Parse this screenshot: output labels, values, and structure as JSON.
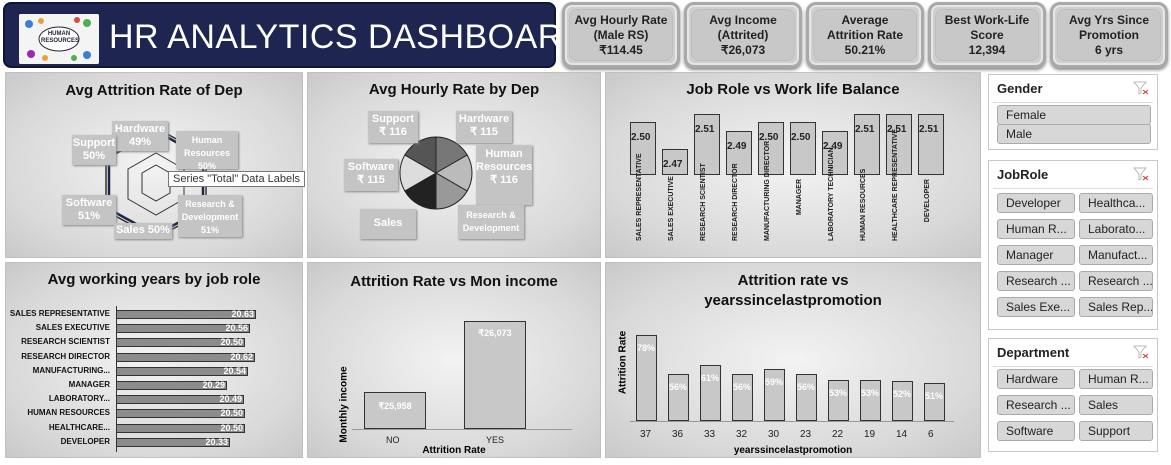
{
  "header": {
    "title": "HR ANALYTICS DASHBOARD",
    "logo_text": "HUMAN RESOURCES"
  },
  "kpis": [
    {
      "label": "Avg Hourly Rate (Male RS)",
      "value": "₹114.45"
    },
    {
      "label": "Avg Income (Attrited)",
      "value": "₹26,073"
    },
    {
      "label": "Average Attrition Rate",
      "value": "50.21%"
    },
    {
      "label": "Best Work-Life Score",
      "value": "12,394"
    },
    {
      "label": "Avg Yrs Since Promotion",
      "value": "6 yrs"
    }
  ],
  "attrition_dep": {
    "title": "Avg Attrition Rate of Dep",
    "labels": [
      {
        "name": "Hardware",
        "value": "49%"
      },
      {
        "name": "Human Resources",
        "value": "50%"
      },
      {
        "name": "Support",
        "value": "50%"
      },
      {
        "name": "Software",
        "value": "51%"
      },
      {
        "name": "Sales",
        "value": "50%"
      },
      {
        "name": "Research & Development",
        "value": "51%"
      }
    ],
    "tooltip": "Series \"Total\" Data Labels"
  },
  "hourly_dep": {
    "title": "Avg Hourly Rate by Dep",
    "labels": [
      {
        "name": "Support",
        "value": "₹ 116"
      },
      {
        "name": "Hardware",
        "value": "₹ 115"
      },
      {
        "name": "Human Resources",
        "value": "₹ 116"
      },
      {
        "name": "Software",
        "value": "₹ 115"
      },
      {
        "name": "Sales",
        "value": ""
      },
      {
        "name": "Research & Development",
        "value": ""
      }
    ]
  },
  "worklife": {
    "title": "Job Role vs Work life Balance",
    "categories": [
      "SALES REPRESENTATIVE",
      "SALES EXECUTIVE",
      "RESEARCH SCIENTIST",
      "RESEARCH DIRECTOR",
      "MANUFACTURING DIRECTOR",
      "MANAGER",
      "LABORATORY TECHNICIAN",
      "HUMAN RESOURCES",
      "HEALTHCARE REPRESENTATIVE",
      "DEVELOPER"
    ],
    "values": [
      "2.50",
      "2.47",
      "2.51",
      "2.49",
      "2.50",
      "2.50",
      "2.49",
      "2.51",
      "2.51",
      "2.51"
    ]
  },
  "working_years": {
    "title": "Avg working years by job role",
    "categories": [
      "SALES REPRESENTATIVE",
      "SALES EXECUTIVE",
      "RESEARCH SCIENTIST",
      "RESEARCH DIRECTOR",
      "MANUFACTURING...",
      "MANAGER",
      "LABORATORY...",
      "HUMAN RESOURCES",
      "HEALTHCARE...",
      "DEVELOPER"
    ],
    "values": [
      "20.63",
      "20.56",
      "20.50",
      "20.62",
      "20.54",
      "20.29",
      "20.49",
      "20.50",
      "20.50",
      "20.33"
    ]
  },
  "income": {
    "title": "Attrition Rate vs Mon income",
    "ylabel": "Monthly income",
    "xlabel": "Attrition Rate",
    "categories": [
      "NO",
      "YES"
    ],
    "values": [
      "₹25,958",
      "₹26,073"
    ]
  },
  "promotion": {
    "title_line1": "Attrition rate vs",
    "title_line2": "yearssincelastpromotion",
    "ylabel": "Attrition Rate",
    "xlabel": "yearssincelastpromotion",
    "categories": [
      "37",
      "36",
      "33",
      "32",
      "30",
      "23",
      "22",
      "19",
      "14",
      "6"
    ],
    "values": [
      "78%",
      "56%",
      "61%",
      "56%",
      "59%",
      "56%",
      "53%",
      "53%",
      "52%",
      "51%"
    ]
  },
  "chart_data": [
    {
      "type": "bar",
      "title": "Job Role vs Work life Balance",
      "categories": [
        "SALES REPRESENTATIVE",
        "SALES EXECUTIVE",
        "RESEARCH SCIENTIST",
        "RESEARCH DIRECTOR",
        "MANUFACTURING DIRECTOR",
        "MANAGER",
        "LABORATORY TECHNICIAN",
        "HUMAN RESOURCES",
        "HEALTHCARE REPRESENTATIVE",
        "DEVELOPER"
      ],
      "values": [
        2.5,
        2.47,
        2.51,
        2.49,
        2.5,
        2.5,
        2.49,
        2.51,
        2.51,
        2.51
      ]
    },
    {
      "type": "bar",
      "title": "Avg working years by job role",
      "orientation": "horizontal",
      "categories": [
        "SALES REPRESENTATIVE",
        "SALES EXECUTIVE",
        "RESEARCH SCIENTIST",
        "RESEARCH DIRECTOR",
        "MANUFACTURING...",
        "MANAGER",
        "LABORATORY...",
        "HUMAN RESOURCES",
        "HEALTHCARE...",
        "DEVELOPER"
      ],
      "values": [
        20.63,
        20.56,
        20.5,
        20.62,
        20.54,
        20.29,
        20.49,
        20.5,
        20.5,
        20.33
      ]
    },
    {
      "type": "bar",
      "title": "Attrition Rate vs Mon income",
      "categories": [
        "NO",
        "YES"
      ],
      "values": [
        25958,
        26073
      ],
      "xlabel": "Attrition Rate",
      "ylabel": "Monthly income"
    },
    {
      "type": "bar",
      "title": "Attrition rate vs yearssincelastpromotion",
      "categories": [
        "37",
        "36",
        "33",
        "32",
        "30",
        "23",
        "22",
        "19",
        "14",
        "6"
      ],
      "values": [
        78,
        56,
        61,
        56,
        59,
        56,
        53,
        53,
        52,
        51
      ],
      "xlabel": "yearssincelastpromotion",
      "ylabel": "Attrition Rate"
    }
  ],
  "slicers": {
    "gender": {
      "title": "Gender",
      "items": [
        "Female",
        "Male"
      ]
    },
    "jobrole": {
      "title": "JobRole",
      "items": [
        "Developer",
        "Healthca...",
        "Human R...",
        "Laborato...",
        "Manager",
        "Manufact...",
        "Research ...",
        "Research ...",
        "Sales Exe...",
        "Sales Rep..."
      ]
    },
    "department": {
      "title": "Department",
      "items": [
        "Hardware",
        "Human R...",
        "Research ...",
        "Sales",
        "Software",
        "Support"
      ]
    }
  }
}
